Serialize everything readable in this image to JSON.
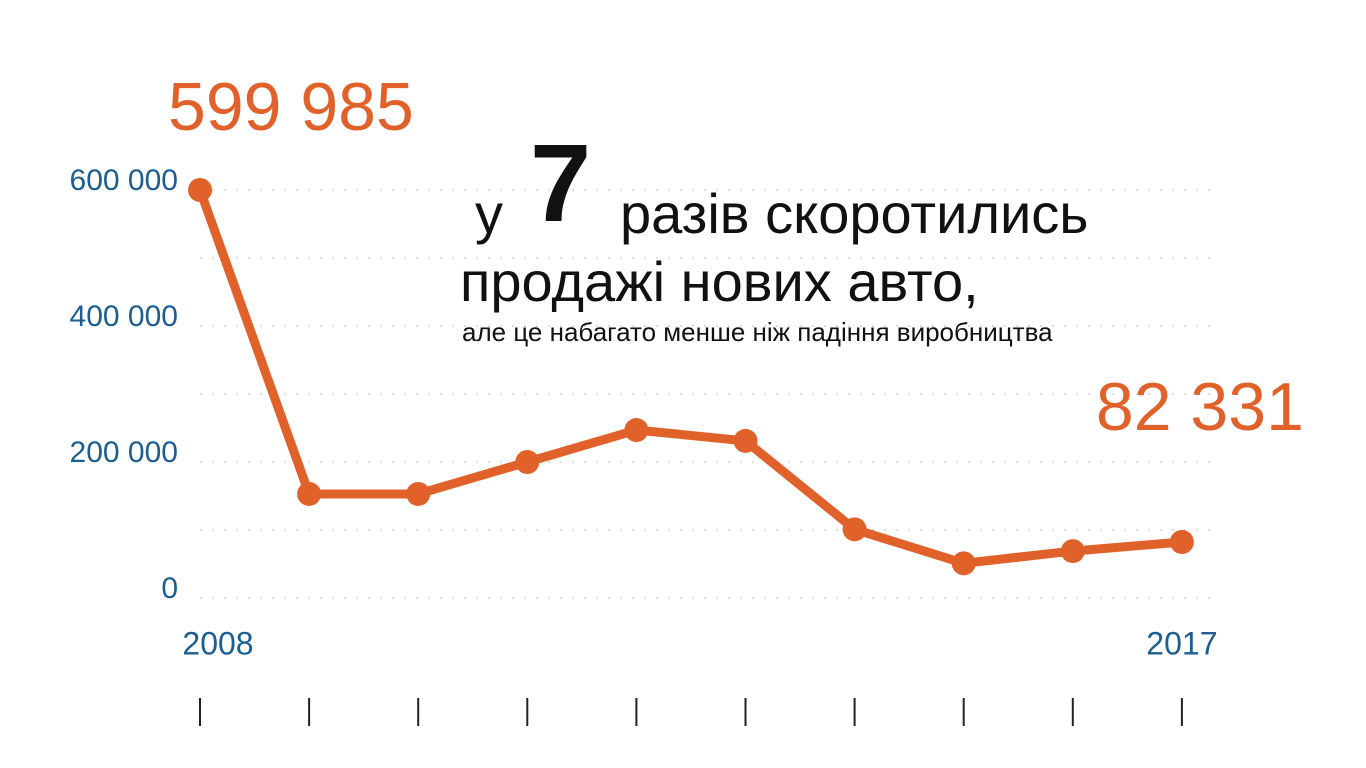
{
  "chart_data": {
    "type": "line",
    "annotations": [
      "у",
      "7",
      "разів скоротились",
      "продажі нових авто,",
      "але це набагато менше ніж падіння  виробництва"
    ],
    "categories": [
      "2008",
      null,
      null,
      null,
      null,
      null,
      null,
      null,
      null,
      "2017"
    ],
    "series": [
      {
        "color": "#e0622a",
        "values": [
          599985,
          153000,
          153000,
          200000,
          247000,
          231000,
          101000,
          51000,
          69000,
          82331
        ],
        "value_labels": [
          "599 985",
          null,
          null,
          null,
          null,
          null,
          null,
          null,
          null,
          "82 331"
        ]
      }
    ],
    "ylim": [
      0,
      600000
    ],
    "yticks": [
      {
        "value": 0,
        "label": "0"
      },
      {
        "value": 200000,
        "label": "200 000"
      },
      {
        "value": 400000,
        "label": "400 000"
      },
      {
        "value": 600000,
        "label": "600 000"
      }
    ],
    "minor_yticks": [
      100000,
      300000,
      500000
    ],
    "grid": true
  }
}
